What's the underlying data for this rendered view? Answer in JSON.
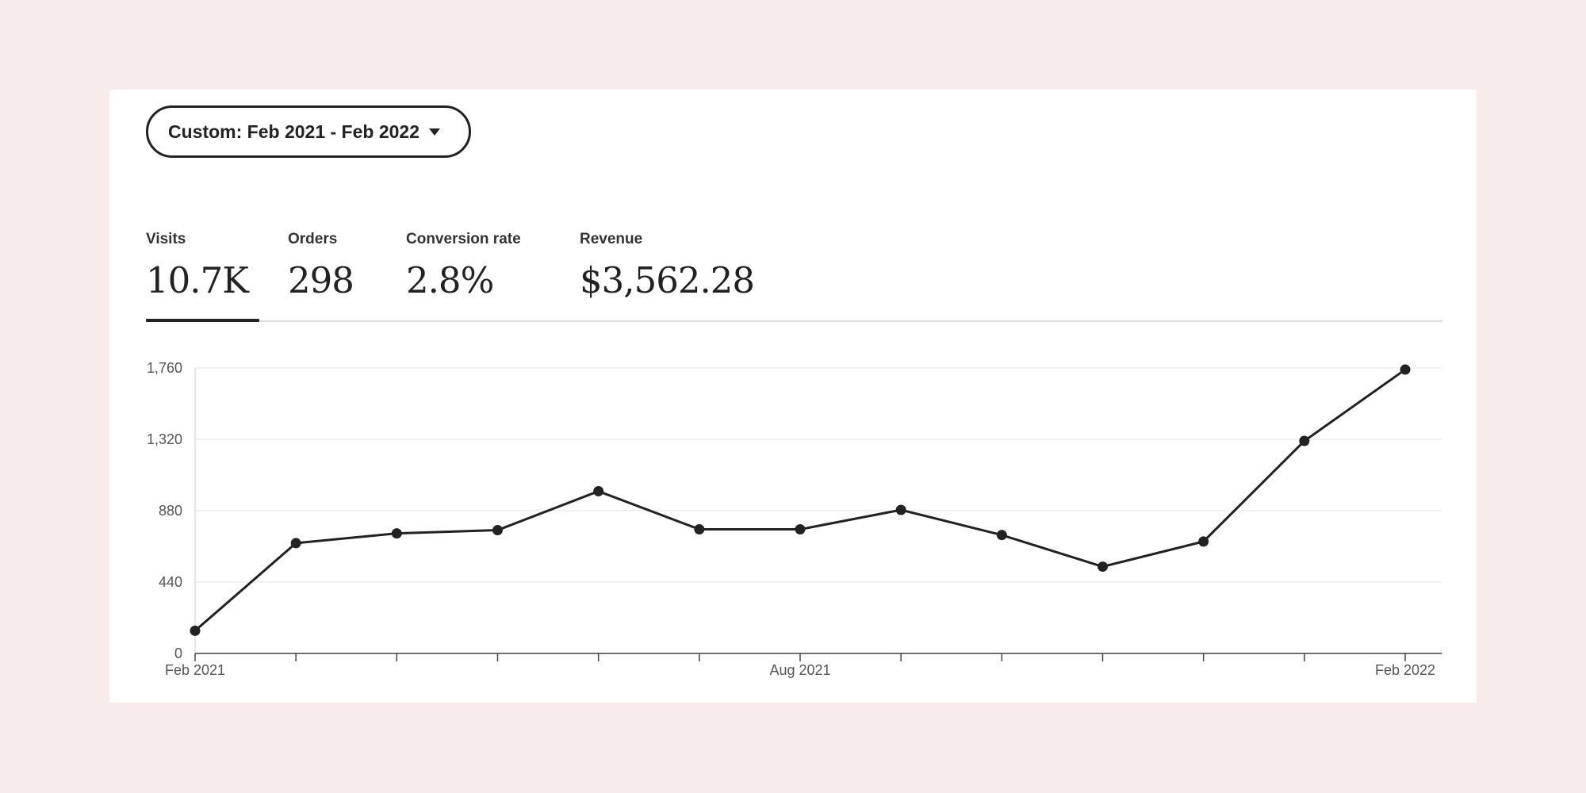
{
  "date_range": {
    "label": "Custom: Feb 2021 - Feb 2022",
    "icon": "caret-down-icon"
  },
  "metrics": [
    {
      "label": "Visits",
      "value": "10.7K",
      "active": true
    },
    {
      "label": "Orders",
      "value": "298",
      "active": false
    },
    {
      "label": "Conversion rate",
      "value": "2.8%",
      "active": false
    },
    {
      "label": "Revenue",
      "value": "$3,562.28",
      "active": false
    }
  ],
  "colors": {
    "background": "#f7ecea",
    "card": "#ffffff",
    "line": "#222222",
    "grid": "#eeeeee",
    "axis_text": "#555555"
  },
  "chart_data": {
    "type": "line",
    "x": [
      "2021-02",
      "2021-03",
      "2021-04",
      "2021-05",
      "2021-06",
      "2021-07",
      "2021-08",
      "2021-09",
      "2021-10",
      "2021-11",
      "2021-12",
      "2022-01",
      "2022-02"
    ],
    "series": [
      {
        "values": [
          140,
          680,
          740,
          760,
          1000,
          765,
          765,
          885,
          730,
          535,
          690,
          1310,
          1750
        ]
      }
    ],
    "x_tick_labels": [
      {
        "index": 0,
        "label": "Feb 2021"
      },
      {
        "index": 6,
        "label": "Aug 2021"
      },
      {
        "index": 12,
        "label": "Feb 2022"
      }
    ],
    "y_ticks": [
      0,
      440,
      880,
      1320,
      1760
    ],
    "y_tick_labels": [
      "0",
      "440",
      "880",
      "1,320",
      "1,760"
    ],
    "ylim": [
      0,
      1760
    ],
    "grid": true,
    "markers": true
  }
}
